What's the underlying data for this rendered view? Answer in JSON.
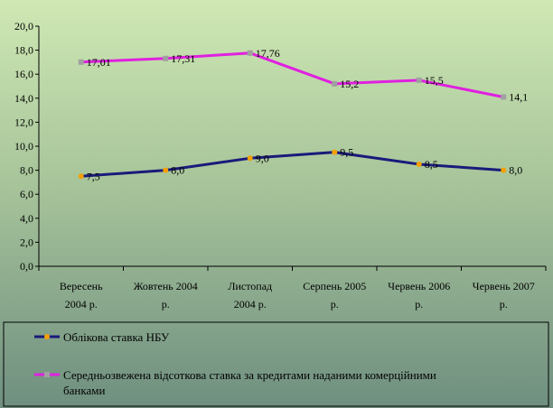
{
  "chart_data": {
    "type": "line",
    "title": "",
    "xlabel": "",
    "ylabel": "",
    "ylim": [
      0,
      20
    ],
    "ytick_step": 2,
    "ytick_labels": [
      "0,0",
      "2,0",
      "4,0",
      "6,0",
      "8,0",
      "10,0",
      "12,0",
      "14,0",
      "16,0",
      "18,0",
      "20,0"
    ],
    "grid": false,
    "legend_position": "bottom",
    "categories": [
      [
        "Вересень",
        "2004 р."
      ],
      [
        "Жовтень 2004",
        "р."
      ],
      [
        "Листопад",
        "2004 р."
      ],
      [
        "Серпень  2005",
        "р."
      ],
      [
        "Червень  2006",
        "р."
      ],
      [
        "Червень  2007",
        "р."
      ]
    ],
    "series": [
      {
        "name": "Облікова ставка НБУ",
        "values": [
          7.5,
          8.0,
          9.0,
          9.5,
          8.5,
          8.0
        ],
        "labels": [
          "7,5",
          "8,0",
          "9,0",
          "9,5",
          "8,5",
          "8,0"
        ],
        "line_color": "#1a1a7a",
        "marker_color": "#f5a000"
      },
      {
        "name": "Середньозвежена відсоткова ставка за кредитами наданими комерційними банками",
        "values": [
          17.01,
          17.31,
          17.76,
          15.2,
          15.5,
          14.1
        ],
        "labels": [
          "17,01",
          "17,31",
          "17,76",
          "15,2",
          "15,5",
          "14,1"
        ],
        "line_color": "#e020e0",
        "marker_color": "#a0a0a0"
      }
    ]
  }
}
